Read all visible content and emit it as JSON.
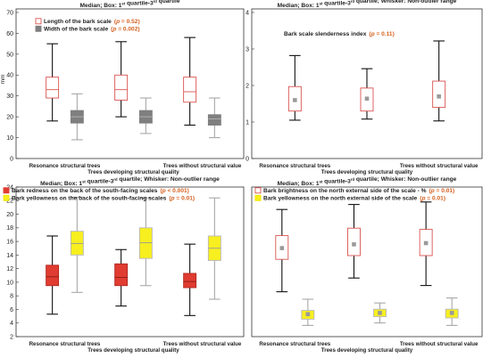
{
  "chart_data": [
    {
      "type": "boxplot",
      "title": "Median; Box: 1st quartile-3rd quartile",
      "ylabel": "mm",
      "ylim": [
        0,
        70
      ],
      "yticks": [
        0,
        10,
        20,
        30,
        40,
        50,
        60,
        70
      ],
      "categories": [
        "Resonance structural trees",
        "Trees developing structural quality",
        "Trees without structural value"
      ],
      "xlabel": "Trees developing structural quality",
      "legend": [
        {
          "label": "Length of the bark scale",
          "p": "(p = 0.52)",
          "color": "#d9534f",
          "fill": "#ffffff"
        },
        {
          "label": "Width of the bark scale",
          "p": "(p = 0.002)",
          "color": "#7f7f7f",
          "fill": "#7f7f7f"
        }
      ],
      "series": [
        {
          "name": "Length of the bark scale",
          "color": "#d9534f",
          "fill": "#ffffff",
          "median_marker": "line",
          "boxes": [
            {
              "min": 18,
              "q1": 29,
              "median": 33,
              "q3": 39,
              "max": 55
            },
            {
              "min": 20,
              "q1": 28,
              "median": 33,
              "q3": 40,
              "max": 56
            },
            {
              "min": 16,
              "q1": 27,
              "median": 32,
              "q3": 39,
              "max": 58
            }
          ]
        },
        {
          "name": "Width of the bark scale",
          "color": "#7f7f7f",
          "fill": "#7f7f7f",
          "median_marker": "line",
          "boxes": [
            {
              "min": 9,
              "q1": 17,
              "median": 20,
              "q3": 23,
              "max": 31
            },
            {
              "min": 12,
              "q1": 17,
              "median": 20,
              "q3": 23,
              "max": 29
            },
            {
              "min": 10,
              "q1": 16,
              "median": 19,
              "q3": 21,
              "max": 29
            }
          ]
        }
      ]
    },
    {
      "type": "boxplot",
      "title": "Median; Box: 1st quartile-3rd quartile; Whisker: Non-outlier range",
      "ylim": [
        0,
        4
      ],
      "yticks": [
        0,
        1,
        2,
        3,
        4
      ],
      "categories": [
        "Resonance structural trees",
        "Trees developing structural quality",
        "Trees without structural value"
      ],
      "xlabel": "Trees developing structural quality",
      "annotation": {
        "label": "Bark scale slenderness index",
        "p": "(p = 0.11)"
      },
      "series": [
        {
          "name": "Bark scale slenderness index",
          "color": "#d9534f",
          "fill": "#ffffff",
          "median_marker": "square",
          "boxes": [
            {
              "min": 1.05,
              "q1": 1.3,
              "median": 1.6,
              "q3": 1.97,
              "max": 2.82
            },
            {
              "min": 1.08,
              "q1": 1.3,
              "median": 1.64,
              "q3": 1.93,
              "max": 2.46
            },
            {
              "min": 1.03,
              "q1": 1.4,
              "median": 1.7,
              "q3": 2.12,
              "max": 3.22
            }
          ]
        }
      ]
    },
    {
      "type": "boxplot",
      "title": "Median; Box: 1st quartile-3rd quartile; Whisker: Non-outlier range",
      "ylim": [
        2,
        24
      ],
      "yticks": [
        2,
        4,
        6,
        8,
        10,
        12,
        14,
        16,
        18,
        20,
        22,
        24
      ],
      "categories": [
        "Resonance structural trees",
        "Trees developing structural quality",
        "Trees without structural value"
      ],
      "xlabel": "Trees developing structural quality",
      "legend": [
        {
          "label": "Bark redness on the back of the south-facing scales",
          "p": "(p < 0.001)",
          "color": "#e03c31",
          "fill": "#e03c31"
        },
        {
          "label": "Bark yellowness on the back of the south-facing scales",
          "p": "(p = 0.01)",
          "color": "#f2e600",
          "fill": "#f7ef1f"
        }
      ],
      "series": [
        {
          "name": "Bark redness on the back of the south-facing scales",
          "color": "#b0281f",
          "fill": "#e03c31",
          "median_marker": "line",
          "boxes": [
            {
              "min": 5.3,
              "q1": 9.5,
              "median": 10.8,
              "q3": 12.5,
              "max": 16.8
            },
            {
              "min": 6.5,
              "q1": 9.5,
              "median": 10.7,
              "q3": 12.7,
              "max": 14.8
            },
            {
              "min": 5.1,
              "q1": 9.2,
              "median": 10.1,
              "q3": 11.3,
              "max": 15.6
            }
          ]
        },
        {
          "name": "Bark yellowness on the back of the south-facing scales",
          "color": "#b8b8b8",
          "fill": "#f7ef1f",
          "median_marker": "line",
          "boxes": [
            {
              "min": 8.5,
              "q1": 14.0,
              "median": 15.7,
              "q3": 17.5,
              "max": 22.5
            },
            {
              "min": 9.5,
              "q1": 13.5,
              "median": 15.8,
              "q3": 18.0,
              "max": 22.4
            },
            {
              "min": 7.5,
              "q1": 13.2,
              "median": 15.0,
              "q3": 16.8,
              "max": 22.4
            }
          ]
        }
      ]
    },
    {
      "type": "boxplot",
      "title": "Median; Box: 1st quartile-3rd quartile; Whisker: Non-outlier range",
      "ylim": [
        0,
        60
      ],
      "categories": [
        "Resonance structural trees",
        "Trees developing structural quality",
        "Trees without structural value"
      ],
      "xlabel": "Trees developing structural quality",
      "legend": [
        {
          "label": "Bark brightness on the north external side of the scale - %",
          "p": "(p = 0.01)",
          "color": "#d9534f",
          "fill": "#ffffff"
        },
        {
          "label": "Bark yellowness on the north external side of the scale",
          "p": "(p = 0.01)",
          "color": "#f2e600",
          "fill": "#f7ef1f"
        }
      ],
      "series": [
        {
          "name": "Bark brightness on the north external side of the scale - %",
          "color": "#d9534f",
          "fill": "#ffffff",
          "median_marker": "square",
          "boxes": [
            {
              "min": 18,
              "q1": 31,
              "median": 35.5,
              "q3": 40.5,
              "max": 51
            },
            {
              "min": 23.5,
              "q1": 32.5,
              "median": 37,
              "q3": 43.5,
              "max": 53
            },
            {
              "min": 20.5,
              "q1": 32.5,
              "median": 37.5,
              "q3": 43,
              "max": 54
            }
          ]
        },
        {
          "name": "Bark yellowness on the north external side of the scale",
          "color": "#b8b8b8",
          "fill": "#f7ef1f",
          "median_marker": "square",
          "boxes": [
            {
              "min": 4.5,
              "q1": 7,
              "median": 9,
              "q3": 10.5,
              "max": 15
            },
            {
              "min": 5.5,
              "q1": 8,
              "median": 9.5,
              "q3": 11,
              "max": 13.5
            },
            {
              "min": 4.5,
              "q1": 7.5,
              "median": 9.5,
              "q3": 11,
              "max": 15.5
            }
          ]
        }
      ]
    }
  ]
}
